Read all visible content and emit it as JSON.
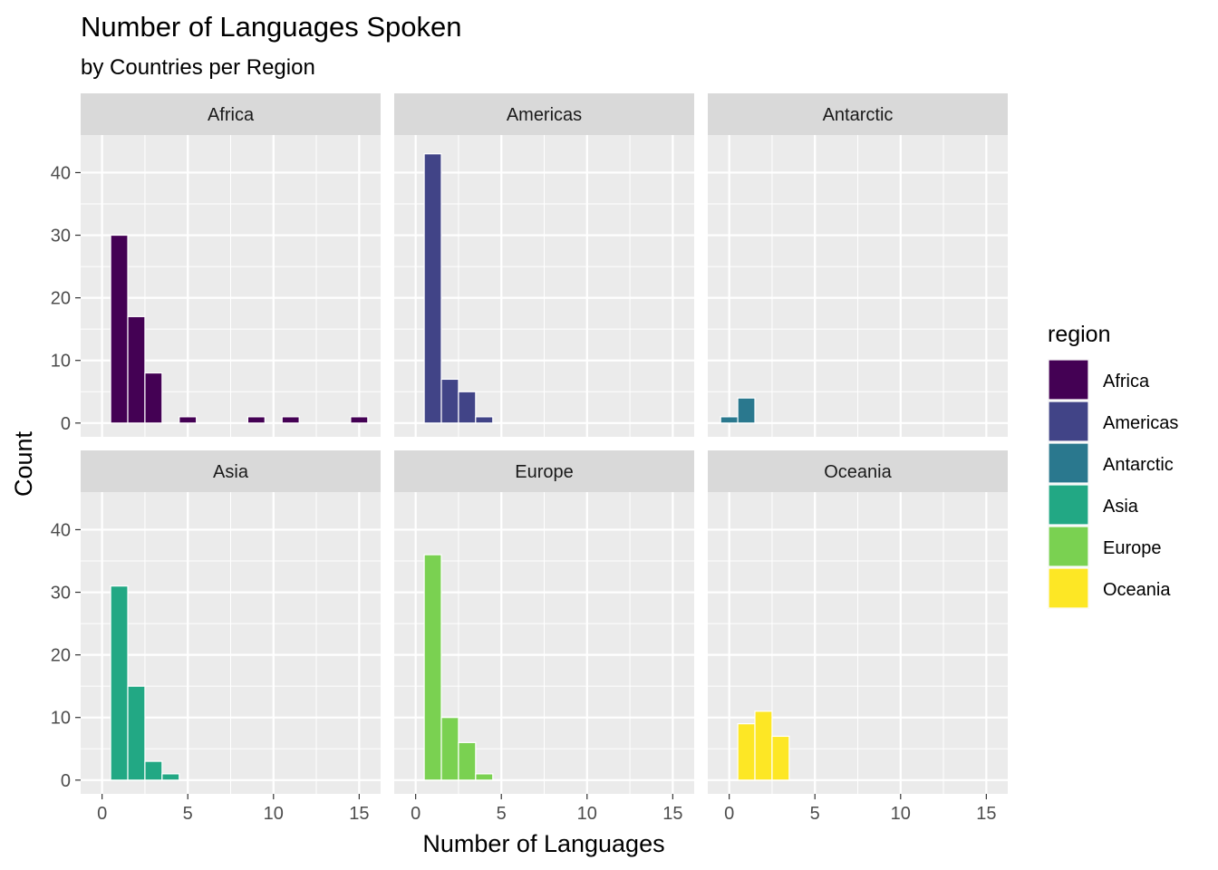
{
  "chart_data": {
    "type": "bar",
    "title": "Number of Languages Spoken",
    "subtitle": "by Countries per Region",
    "xlabel": "Number of Languages",
    "ylabel": "Count",
    "xlim": [
      -1.25,
      16.25
    ],
    "ylim": [
      -2.2,
      46
    ],
    "x_ticks": [
      0,
      5,
      10,
      15
    ],
    "y_ticks": [
      0,
      10,
      20,
      30,
      40
    ],
    "bin_width": 1,
    "grid": true,
    "legend": {
      "title": "region",
      "placement": "right"
    },
    "facets": [
      {
        "name": "Africa",
        "color": "#440154",
        "bins": [
          {
            "x": 1,
            "count": 30
          },
          {
            "x": 2,
            "count": 17
          },
          {
            "x": 3,
            "count": 8
          },
          {
            "x": 5,
            "count": 1
          },
          {
            "x": 9,
            "count": 1
          },
          {
            "x": 11,
            "count": 1
          },
          {
            "x": 15,
            "count": 1
          }
        ]
      },
      {
        "name": "Americas",
        "color": "#414487",
        "bins": [
          {
            "x": 1,
            "count": 43
          },
          {
            "x": 2,
            "count": 7
          },
          {
            "x": 3,
            "count": 5
          },
          {
            "x": 4,
            "count": 1
          }
        ]
      },
      {
        "name": "Antarctic",
        "color": "#2A788E",
        "bins": [
          {
            "x": 0,
            "count": 1
          },
          {
            "x": 1,
            "count": 4
          }
        ]
      },
      {
        "name": "Asia",
        "color": "#22A884",
        "bins": [
          {
            "x": 1,
            "count": 31
          },
          {
            "x": 2,
            "count": 15
          },
          {
            "x": 3,
            "count": 3
          },
          {
            "x": 4,
            "count": 1
          }
        ]
      },
      {
        "name": "Europe",
        "color": "#7AD151",
        "bins": [
          {
            "x": 1,
            "count": 36
          },
          {
            "x": 2,
            "count": 10
          },
          {
            "x": 3,
            "count": 6
          },
          {
            "x": 4,
            "count": 1
          }
        ]
      },
      {
        "name": "Oceania",
        "color": "#FDE725",
        "bins": [
          {
            "x": 1,
            "count": 9
          },
          {
            "x": 2,
            "count": 11
          },
          {
            "x": 3,
            "count": 7
          }
        ]
      }
    ]
  }
}
